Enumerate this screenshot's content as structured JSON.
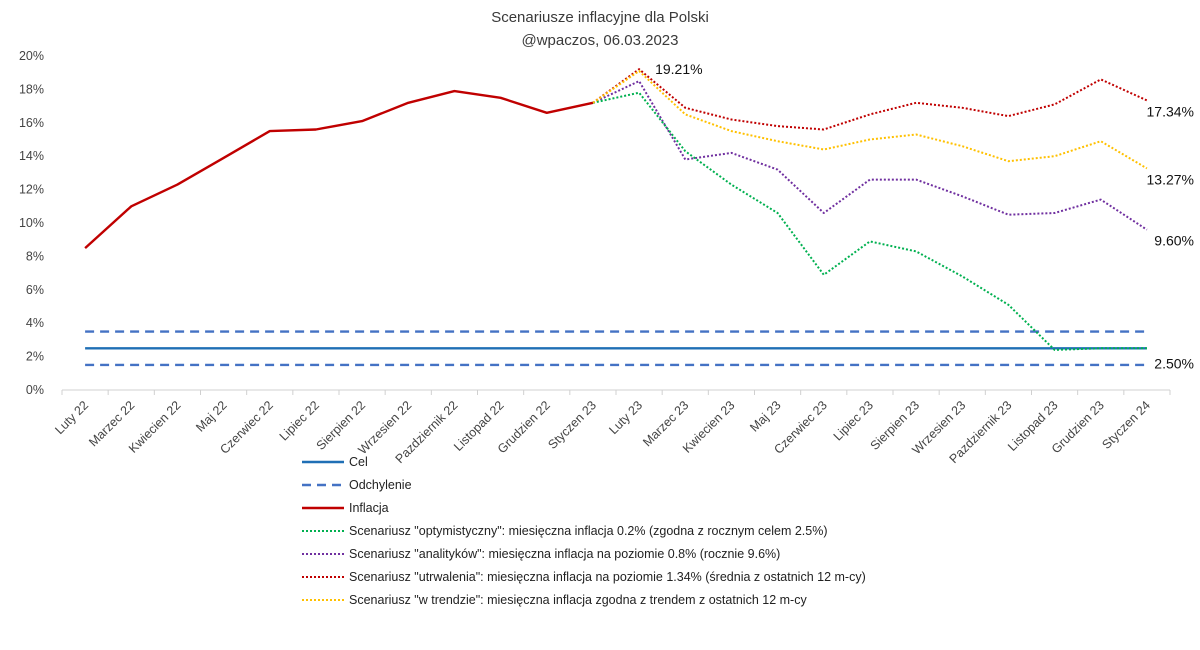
{
  "chart_data": {
    "type": "line",
    "title": "Scenariusze inflacyjne dla Polski",
    "subtitle": "@wpaczos, 06.03.2023",
    "xlabel": "",
    "ylabel": "",
    "ylim": [
      0,
      20
    ],
    "y_ticks": [
      "0%",
      "2%",
      "4%",
      "6%",
      "8%",
      "10%",
      "12%",
      "14%",
      "16%",
      "18%",
      "20%"
    ],
    "grid": false,
    "legend_position": "bottom",
    "categories": [
      "Luty 22",
      "Marzec 22",
      "Kwiecien 22",
      "Maj 22",
      "Czerwiec 22",
      "Lipiec 22",
      "Sierpien 22",
      "Wrzesien 22",
      "Pazdziernik 22",
      "Listopad 22",
      "Grudzien 22",
      "Styczen 23",
      "Luty 23",
      "Marzec 23",
      "Kwiecien 23",
      "Maj 23",
      "Czerwiec 23",
      "Lipiec 23",
      "Sierpien 23",
      "Wrzesien 23",
      "Pazdziernik 23",
      "Listopad 23",
      "Grudzien 23",
      "Styczen 24"
    ],
    "series": [
      {
        "name": "Cel",
        "color": "#1f6fb5",
        "style": "solid",
        "values": [
          2.5,
          2.5,
          2.5,
          2.5,
          2.5,
          2.5,
          2.5,
          2.5,
          2.5,
          2.5,
          2.5,
          2.5,
          2.5,
          2.5,
          2.5,
          2.5,
          2.5,
          2.5,
          2.5,
          2.5,
          2.5,
          2.5,
          2.5,
          2.5
        ]
      },
      {
        "name": "Odchylenie",
        "color": "#4472c4",
        "style": "dashed",
        "values": [
          3.5,
          3.5,
          3.5,
          3.5,
          3.5,
          3.5,
          3.5,
          3.5,
          3.5,
          3.5,
          3.5,
          3.5,
          3.5,
          3.5,
          3.5,
          3.5,
          3.5,
          3.5,
          3.5,
          3.5,
          3.5,
          3.5,
          3.5,
          3.5
        ]
      },
      {
        "name": "",
        "legend": false,
        "color": "#4472c4",
        "style": "dashed",
        "values": [
          1.5,
          1.5,
          1.5,
          1.5,
          1.5,
          1.5,
          1.5,
          1.5,
          1.5,
          1.5,
          1.5,
          1.5,
          1.5,
          1.5,
          1.5,
          1.5,
          1.5,
          1.5,
          1.5,
          1.5,
          1.5,
          1.5,
          1.5,
          1.5
        ]
      },
      {
        "name": "Inflacja",
        "color": "#c00000",
        "style": "solid",
        "values": [
          8.5,
          11.0,
          12.3,
          13.9,
          15.5,
          15.6,
          16.1,
          17.2,
          17.9,
          17.5,
          16.6,
          17.2,
          null,
          null,
          null,
          null,
          null,
          null,
          null,
          null,
          null,
          null,
          null,
          null
        ]
      },
      {
        "name": "Scenariusz \"optymistyczny\": miesięczna inflacja 0.2% (zgodna z rocznym celem 2.5%)",
        "color": "#00b050",
        "style": "dotted",
        "values": [
          null,
          null,
          null,
          null,
          null,
          null,
          null,
          null,
          null,
          null,
          null,
          17.2,
          17.8,
          14.3,
          12.3,
          10.6,
          6.9,
          8.9,
          8.3,
          6.8,
          5.1,
          2.4,
          2.5,
          2.5
        ]
      },
      {
        "name": "Scenariusz \"analityków\": miesięczna inflacja na poziomie 0.8% (rocznie 9.6%)",
        "color": "#7030a0",
        "style": "dotted",
        "values": [
          null,
          null,
          null,
          null,
          null,
          null,
          null,
          null,
          null,
          null,
          null,
          17.2,
          18.5,
          13.8,
          14.2,
          13.2,
          10.6,
          12.6,
          12.6,
          11.6,
          10.5,
          10.6,
          11.4,
          9.6
        ]
      },
      {
        "name": "Scenariusz \"utrwalenia\": miesięczna inflacja na poziomie 1.34% (średnia z ostatnich 12 m-cy)",
        "color": "#c00000",
        "style": "dotted",
        "values": [
          null,
          null,
          null,
          null,
          null,
          null,
          null,
          null,
          null,
          null,
          null,
          17.2,
          19.21,
          16.9,
          16.2,
          15.8,
          15.6,
          16.5,
          17.2,
          16.9,
          16.4,
          17.1,
          18.6,
          17.34
        ]
      },
      {
        "name": "Scenariusz \"w trendzie\": miesięczna inflacja zgodna z trendem z ostatnich 12 m-cy",
        "color": "#ffc000",
        "style": "dotted",
        "values": [
          null,
          null,
          null,
          null,
          null,
          null,
          null,
          null,
          null,
          null,
          null,
          17.2,
          19.1,
          16.5,
          15.5,
          14.9,
          14.4,
          15.0,
          15.3,
          14.6,
          13.7,
          14.0,
          14.9,
          13.27
        ]
      }
    ],
    "data_labels": [
      {
        "text": "19.21%",
        "category": "Luty 23",
        "value": 19.21
      },
      {
        "text": "17.34%",
        "category": "Styczen 24",
        "value": 17.34
      },
      {
        "text": "13.27%",
        "category": "Styczen 24",
        "value": 13.27
      },
      {
        "text": "9.60%",
        "category": "Styczen 24",
        "value": 9.6
      },
      {
        "text": "2.50%",
        "category": "Styczen 24",
        "value": 2.5
      }
    ]
  }
}
